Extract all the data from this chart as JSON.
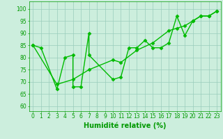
{
  "line1_x": [
    0,
    1,
    3,
    4,
    5,
    5,
    6,
    7,
    7,
    10,
    11,
    12,
    13,
    14,
    15,
    16,
    17,
    18,
    19,
    20,
    21,
    22,
    23
  ],
  "line1_y": [
    85,
    84,
    67,
    80,
    81,
    68,
    68,
    90,
    81,
    71,
    72,
    84,
    84,
    87,
    84,
    84,
    86,
    97,
    89,
    95,
    97,
    97,
    99
  ],
  "line2_x": [
    0,
    3,
    5,
    7,
    10,
    11,
    13,
    15,
    17,
    18,
    19,
    20,
    21,
    22,
    23
  ],
  "line2_y": [
    85,
    69,
    71,
    75,
    79,
    78,
    83,
    86,
    91,
    92,
    93,
    95,
    97,
    97,
    99
  ],
  "line_color": "#00bb00",
  "marker": "D",
  "markersize": 2.5,
  "linewidth": 1.0,
  "bg_color": "#cceedd",
  "grid_color": "#99ccbb",
  "xlabel": "Humidité relative (%)",
  "xlabel_fontsize": 7,
  "xlabel_color": "#009900",
  "ylabel_ticks": [
    60,
    65,
    70,
    75,
    80,
    85,
    90,
    95,
    100
  ],
  "xlim": [
    -0.5,
    23.5
  ],
  "ylim": [
    58,
    103
  ],
  "tick_fontsize": 5.5,
  "tick_color": "#009900",
  "xtick_labels": [
    "0",
    "1",
    "2",
    "3",
    "4",
    "5",
    "6",
    "7",
    "8",
    "9",
    "10",
    "11",
    "12",
    "13",
    "14",
    "15",
    "16",
    "17",
    "18",
    "19",
    "20",
    "21",
    "22",
    "23"
  ]
}
